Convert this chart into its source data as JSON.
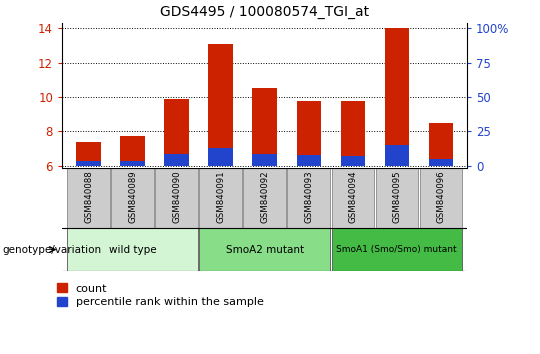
{
  "title": "GDS4495 / 100080574_TGI_at",
  "samples": [
    "GSM840088",
    "GSM840089",
    "GSM840090",
    "GSM840091",
    "GSM840092",
    "GSM840093",
    "GSM840094",
    "GSM840095",
    "GSM840096"
  ],
  "count_values": [
    7.4,
    7.7,
    9.9,
    13.1,
    10.5,
    9.75,
    9.75,
    14.0,
    8.5
  ],
  "percentile_values": [
    6.25,
    6.25,
    6.65,
    7.0,
    6.65,
    6.6,
    6.55,
    7.2,
    6.4
  ],
  "bar_bottom": 6.0,
  "ylim": [
    5.85,
    14.3
  ],
  "left_yticks": [
    6,
    8,
    10,
    12,
    14
  ],
  "right_tick_positions": [
    6.0,
    8.0,
    10.0,
    12.0,
    14.0
  ],
  "right_tick_labels": [
    "0",
    "25",
    "50",
    "75",
    "100%"
  ],
  "groups": [
    {
      "label": "wild type",
      "start": 0,
      "end": 3,
      "color": "#d4f5d4"
    },
    {
      "label": "SmoA2 mutant",
      "start": 3,
      "end": 6,
      "color": "#88dd88"
    },
    {
      "label": "SmoA1 (Smo/Smo) mutant",
      "start": 6,
      "end": 9,
      "color": "#44bb44"
    }
  ],
  "bar_color_red": "#cc2200",
  "bar_color_blue": "#2244cc",
  "tick_color_left": "#cc2200",
  "tick_color_right": "#2244cc",
  "sample_box_color": "#cccccc",
  "genotype_label": "genotype/variation",
  "legend_count": "count",
  "legend_percentile": "percentile rank within the sample",
  "bar_width": 0.55,
  "figsize": [
    5.4,
    3.54
  ],
  "dpi": 100
}
